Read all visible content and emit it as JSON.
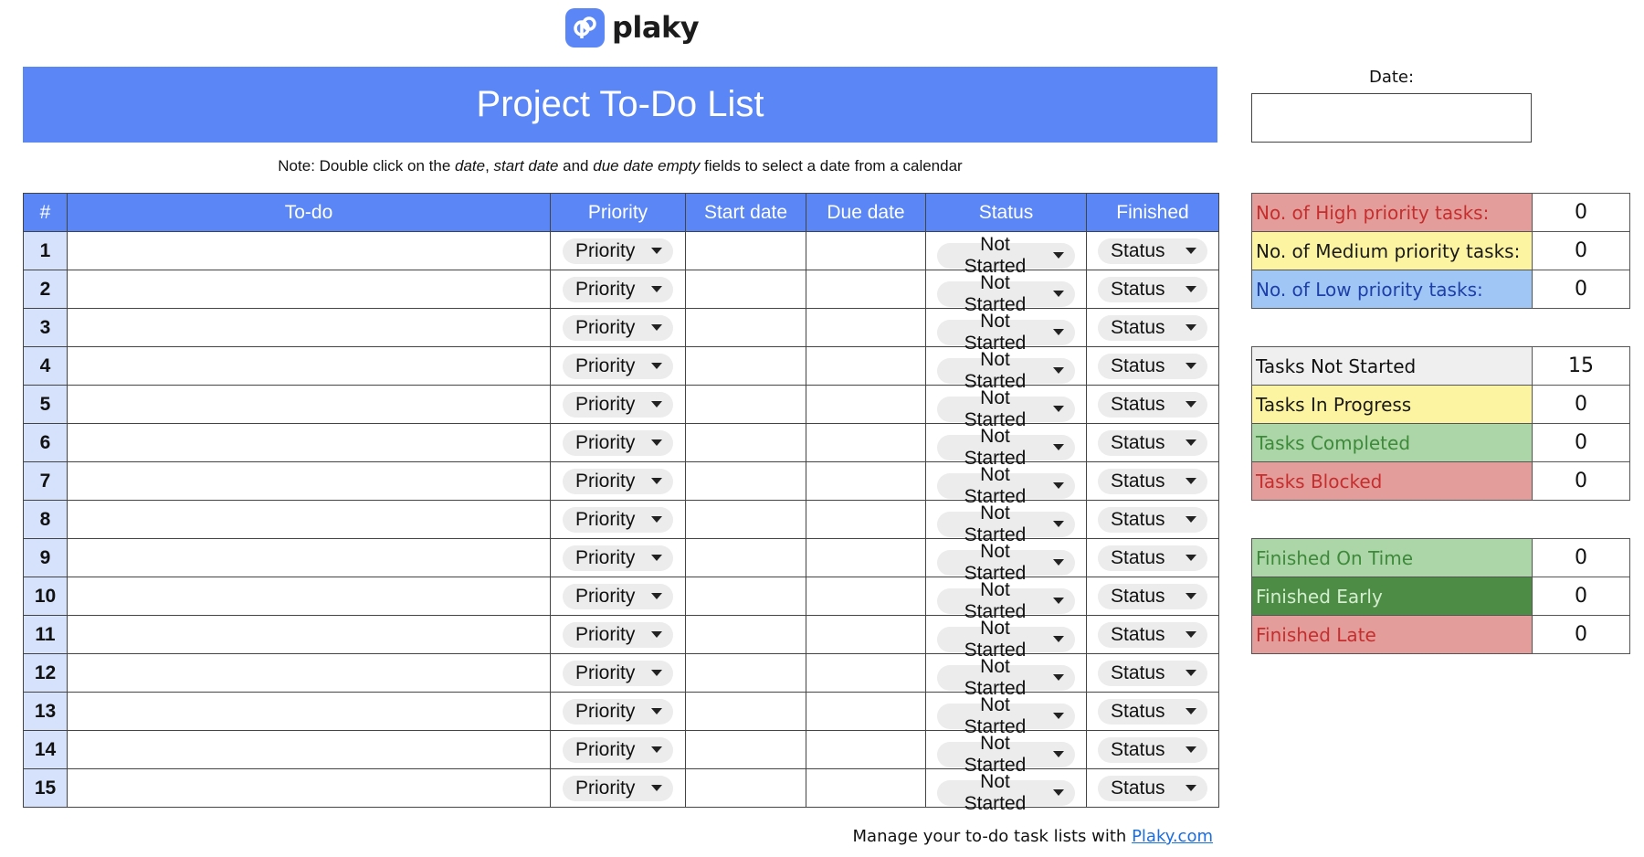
{
  "logo": {
    "text": "plaky",
    "brand_color": "#5b86f5"
  },
  "title": "Project To-Do List",
  "note": {
    "prefix": "Note: Double click on the ",
    "i1": "date",
    "s1": ", ",
    "i2": "start date",
    "s2": " and ",
    "i3": "due date empty",
    "suffix": " fields to select a date from a calendar"
  },
  "table": {
    "headers": [
      "#",
      "To-do",
      "Priority",
      "Start date",
      "Due date",
      "Status",
      "Finished"
    ],
    "rows": [
      {
        "num": "1",
        "todo": "",
        "priority": "Priority",
        "start": "",
        "due": "",
        "status": "Not Started",
        "finished": "Status"
      },
      {
        "num": "2",
        "todo": "",
        "priority": "Priority",
        "start": "",
        "due": "",
        "status": "Not Started",
        "finished": "Status"
      },
      {
        "num": "3",
        "todo": "",
        "priority": "Priority",
        "start": "",
        "due": "",
        "status": "Not Started",
        "finished": "Status"
      },
      {
        "num": "4",
        "todo": "",
        "priority": "Priority",
        "start": "",
        "due": "",
        "status": "Not Started",
        "finished": "Status"
      },
      {
        "num": "5",
        "todo": "",
        "priority": "Priority",
        "start": "",
        "due": "",
        "status": "Not Started",
        "finished": "Status"
      },
      {
        "num": "6",
        "todo": "",
        "priority": "Priority",
        "start": "",
        "due": "",
        "status": "Not Started",
        "finished": "Status"
      },
      {
        "num": "7",
        "todo": "",
        "priority": "Priority",
        "start": "",
        "due": "",
        "status": "Not Started",
        "finished": "Status"
      },
      {
        "num": "8",
        "todo": "",
        "priority": "Priority",
        "start": "",
        "due": "",
        "status": "Not Started",
        "finished": "Status"
      },
      {
        "num": "9",
        "todo": "",
        "priority": "Priority",
        "start": "",
        "due": "",
        "status": "Not Started",
        "finished": "Status"
      },
      {
        "num": "10",
        "todo": "",
        "priority": "Priority",
        "start": "",
        "due": "",
        "status": "Not Started",
        "finished": "Status"
      },
      {
        "num": "11",
        "todo": "",
        "priority": "Priority",
        "start": "",
        "due": "",
        "status": "Not Started",
        "finished": "Status"
      },
      {
        "num": "12",
        "todo": "",
        "priority": "Priority",
        "start": "",
        "due": "",
        "status": "Not Started",
        "finished": "Status"
      },
      {
        "num": "13",
        "todo": "",
        "priority": "Priority",
        "start": "",
        "due": "",
        "status": "Not Started",
        "finished": "Status"
      },
      {
        "num": "14",
        "todo": "",
        "priority": "Priority",
        "start": "",
        "due": "",
        "status": "Not Started",
        "finished": "Status"
      },
      {
        "num": "15",
        "todo": "",
        "priority": "Priority",
        "start": "",
        "due": "",
        "status": "Not Started",
        "finished": "Status"
      }
    ]
  },
  "date": {
    "label": "Date:",
    "value": ""
  },
  "stats": [
    [
      {
        "label": "No. of High priority tasks:",
        "value": "0",
        "bg": "#e39d9b",
        "fg": "#c62e2e"
      },
      {
        "label": "No. of Medium priority tasks:",
        "value": "0",
        "bg": "#fdf4a1",
        "fg": "#1a1a1a"
      },
      {
        "label": "No. of Low priority tasks:",
        "value": "0",
        "bg": "#9fc6f4",
        "fg": "#1f3fa8"
      }
    ],
    [
      {
        "label": "Tasks Not Started",
        "value": "15",
        "bg": "#efefef",
        "fg": "#111111"
      },
      {
        "label": "Tasks In Progress",
        "value": "0",
        "bg": "#fdf4a1",
        "fg": "#1a1a1a"
      },
      {
        "label": "Tasks Completed",
        "value": "0",
        "bg": "#acd5a8",
        "fg": "#3d8a3a"
      },
      {
        "label": "Tasks Blocked",
        "value": "0",
        "bg": "#e39d9b",
        "fg": "#c62e2e"
      }
    ],
    [
      {
        "label": "Finished On Time",
        "value": "0",
        "bg": "#acd5a8",
        "fg": "#3d8a3a"
      },
      {
        "label": "Finished Early",
        "value": "0",
        "bg": "#4d8c45",
        "fg": "#d4eecf"
      },
      {
        "label": "Finished Late",
        "value": "0",
        "bg": "#e39d9b",
        "fg": "#c62e2e"
      }
    ]
  ],
  "footer": {
    "text": "Manage your to-do task lists with ",
    "link": "Plaky.com"
  }
}
